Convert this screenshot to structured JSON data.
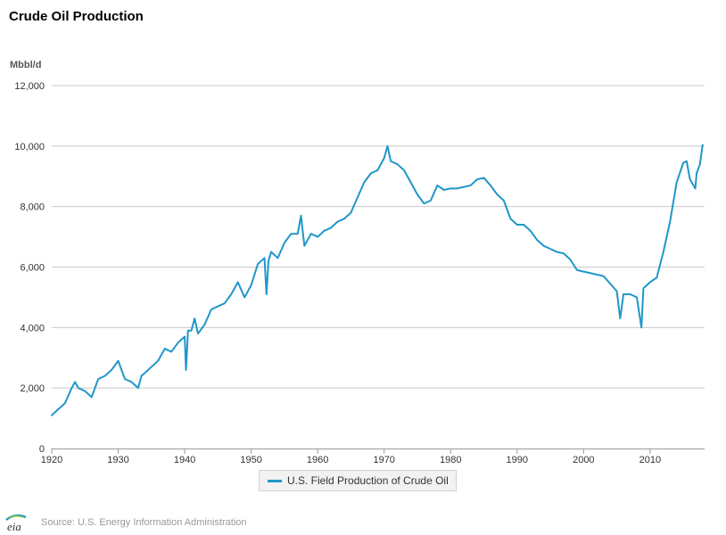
{
  "chart_data": {
    "type": "line",
    "title": "Crude Oil Production",
    "ylabel": "Mbbl/d",
    "xlabel": "",
    "xlim": [
      1920,
      2018.2
    ],
    "ylim": [
      0,
      12000
    ],
    "yticks": [
      "0",
      "2,000",
      "4,000",
      "6,000",
      "8,000",
      "10,000",
      "12,000"
    ],
    "ytick_values": [
      0,
      2000,
      4000,
      6000,
      8000,
      10000,
      12000
    ],
    "xticks": [
      "1920",
      "1930",
      "1940",
      "1950",
      "1960",
      "1970",
      "1980",
      "1990",
      "2000",
      "2010"
    ],
    "xtick_values": [
      1920,
      1930,
      1940,
      1950,
      1960,
      1970,
      1980,
      1990,
      2000,
      2010
    ],
    "grid": true,
    "legend_position": "bottom-center",
    "series_color": "#1f97c9",
    "series": [
      {
        "name": "U.S. Field Production of Crude Oil",
        "color": "#1f97c9",
        "points": [
          [
            1920,
            1100
          ],
          [
            1921,
            1300
          ],
          [
            1922,
            1500
          ],
          [
            1923,
            2000
          ],
          [
            1923.5,
            2200
          ],
          [
            1924,
            2000
          ],
          [
            1925,
            1900
          ],
          [
            1926,
            1700
          ],
          [
            1926.5,
            2000
          ],
          [
            1927,
            2300
          ],
          [
            1928,
            2400
          ],
          [
            1929,
            2600
          ],
          [
            1930,
            2900
          ],
          [
            1931,
            2300
          ],
          [
            1932,
            2200
          ],
          [
            1933,
            2000
          ],
          [
            1933.5,
            2400
          ],
          [
            1934,
            2500
          ],
          [
            1935,
            2700
          ],
          [
            1936,
            2900
          ],
          [
            1937,
            3300
          ],
          [
            1938,
            3200
          ],
          [
            1939,
            3500
          ],
          [
            1940,
            3700
          ],
          [
            1940.2,
            2600
          ],
          [
            1940.5,
            3900
          ],
          [
            1941,
            3900
          ],
          [
            1941.5,
            4300
          ],
          [
            1942,
            3800
          ],
          [
            1943,
            4100
          ],
          [
            1944,
            4600
          ],
          [
            1945,
            4700
          ],
          [
            1946,
            4800
          ],
          [
            1947,
            5100
          ],
          [
            1948,
            5500
          ],
          [
            1949,
            5000
          ],
          [
            1950,
            5400
          ],
          [
            1951,
            6100
          ],
          [
            1952,
            6300
          ],
          [
            1952.3,
            5100
          ],
          [
            1952.6,
            6200
          ],
          [
            1953,
            6500
          ],
          [
            1954,
            6300
          ],
          [
            1955,
            6800
          ],
          [
            1956,
            7100
          ],
          [
            1957,
            7100
          ],
          [
            1957.5,
            7700
          ],
          [
            1958,
            6700
          ],
          [
            1959,
            7100
          ],
          [
            1960,
            7000
          ],
          [
            1961,
            7200
          ],
          [
            1962,
            7300
          ],
          [
            1963,
            7500
          ],
          [
            1964,
            7600
          ],
          [
            1965,
            7800
          ],
          [
            1966,
            8300
          ],
          [
            1967,
            8800
          ],
          [
            1968,
            9100
          ],
          [
            1969,
            9200
          ],
          [
            1970,
            9600
          ],
          [
            1970.5,
            10000
          ],
          [
            1971,
            9500
          ],
          [
            1972,
            9400
          ],
          [
            1973,
            9200
          ],
          [
            1974,
            8800
          ],
          [
            1975,
            8400
          ],
          [
            1976,
            8100
          ],
          [
            1977,
            8200
          ],
          [
            1978,
            8700
          ],
          [
            1979,
            8550
          ],
          [
            1980,
            8600
          ],
          [
            1981,
            8600
          ],
          [
            1982,
            8650
          ],
          [
            1983,
            8700
          ],
          [
            1984,
            8900
          ],
          [
            1985,
            8950
          ],
          [
            1986,
            8700
          ],
          [
            1987,
            8400
          ],
          [
            1988,
            8200
          ],
          [
            1989,
            7600
          ],
          [
            1990,
            7400
          ],
          [
            1991,
            7400
          ],
          [
            1992,
            7200
          ],
          [
            1993,
            6900
          ],
          [
            1994,
            6700
          ],
          [
            1995,
            6600
          ],
          [
            1996,
            6500
          ],
          [
            1997,
            6450
          ],
          [
            1998,
            6250
          ],
          [
            1999,
            5900
          ],
          [
            2000,
            5850
          ],
          [
            2001,
            5800
          ],
          [
            2002,
            5750
          ],
          [
            2003,
            5700
          ],
          [
            2004,
            5450
          ],
          [
            2005,
            5200
          ],
          [
            2005.5,
            4300
          ],
          [
            2006,
            5100
          ],
          [
            2007,
            5100
          ],
          [
            2008,
            5000
          ],
          [
            2008.7,
            4000
          ],
          [
            2009,
            5300
          ],
          [
            2010,
            5500
          ],
          [
            2011,
            5650
          ],
          [
            2012,
            6500
          ],
          [
            2013,
            7500
          ],
          [
            2014,
            8800
          ],
          [
            2015,
            9450
          ],
          [
            2015.5,
            9500
          ],
          [
            2016,
            8900
          ],
          [
            2016.8,
            8600
          ],
          [
            2017,
            9100
          ],
          [
            2017.5,
            9400
          ],
          [
            2017.9,
            10040
          ]
        ]
      }
    ]
  },
  "legend": {
    "label": "U.S. Field Production of Crude Oil"
  },
  "source": {
    "text": "Source: U.S. Energy Information Administration",
    "logo_text": "eia",
    "logo_icon": "eia-logo-icon"
  }
}
